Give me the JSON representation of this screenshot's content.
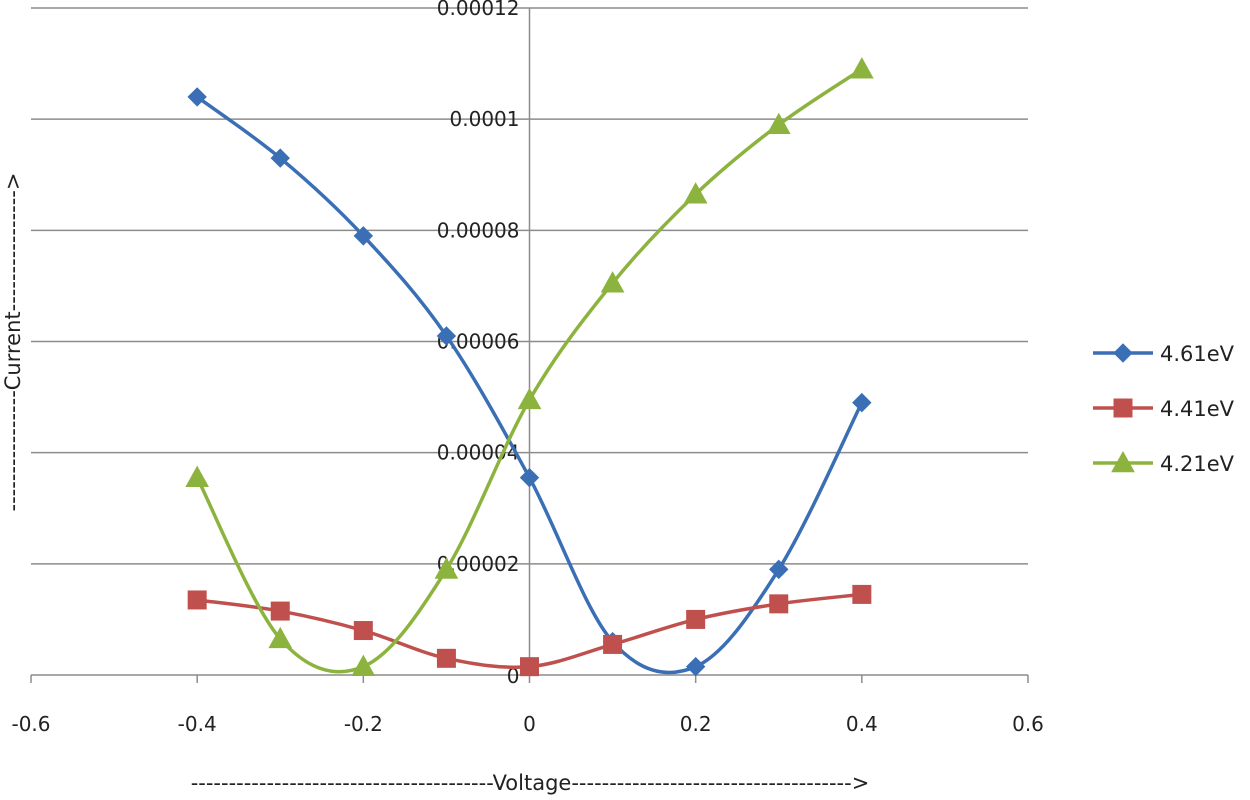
{
  "chart_data": {
    "type": "scatter",
    "title": "",
    "xlabel": "----------------------------------------Voltage------------------------------------->",
    "ylabel": "----------------Current---------------->",
    "xlim": [
      -0.6,
      0.6
    ],
    "ylim": [
      0,
      0.00012
    ],
    "x_ticks": [
      "-0.6",
      "-0.4",
      "-0.2",
      "0",
      "0.2",
      "0.4",
      "0.6"
    ],
    "y_ticks": [
      "0",
      "0.00002",
      "0.00004",
      "0.00006",
      "0.00008",
      "0.0001",
      "0.00012"
    ],
    "grid": true,
    "legend_position": "right",
    "series": [
      {
        "name": "4.61eV",
        "color": "#3a6fb5",
        "marker": "diamond",
        "x": [
          -0.4,
          -0.3,
          -0.2,
          -0.1,
          0,
          0.1,
          0.2,
          0.3,
          0.4
        ],
        "y": [
          0.000104,
          9.3e-05,
          7.9e-05,
          6.1e-05,
          3.55e-05,
          6e-06,
          1.5e-06,
          1.9e-05,
          4.9e-05
        ]
      },
      {
        "name": "4.41eV",
        "color": "#c0504d",
        "marker": "square",
        "x": [
          -0.4,
          -0.3,
          -0.2,
          -0.1,
          0,
          0.1,
          0.2,
          0.3,
          0.4
        ],
        "y": [
          1.35e-05,
          1.15e-05,
          8e-06,
          3e-06,
          1.5e-06,
          5.5e-06,
          1e-05,
          1.28e-05,
          1.45e-05
        ]
      },
      {
        "name": "4.21eV",
        "color": "#8db33f",
        "marker": "triangle",
        "x": [
          -0.4,
          -0.3,
          -0.2,
          -0.1,
          0,
          0.1,
          0.2,
          0.3,
          0.4
        ],
        "y": [
          3.55e-05,
          6.5e-06,
          1.5e-06,
          1.9e-05,
          4.95e-05,
          7.05e-05,
          8.65e-05,
          9.9e-05,
          0.000109
        ]
      }
    ]
  }
}
